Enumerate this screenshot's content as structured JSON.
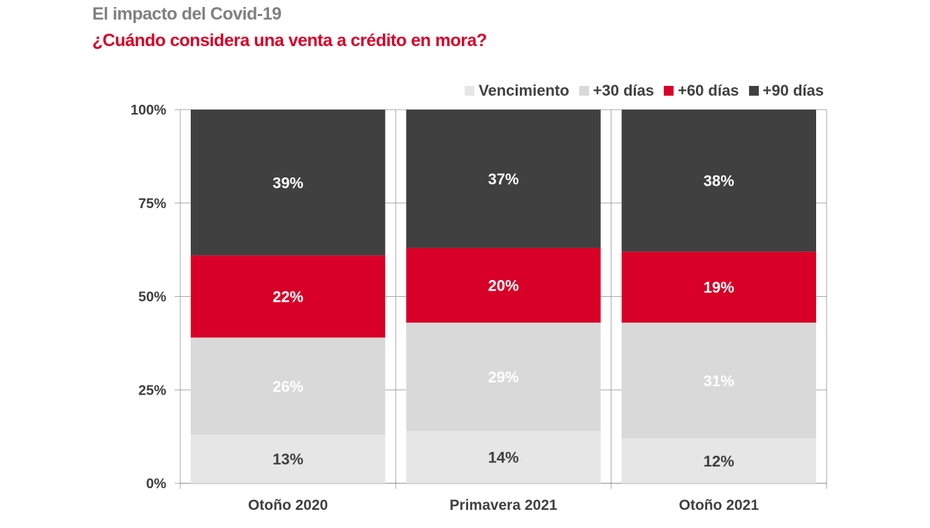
{
  "header": {
    "title": "El impacto del Covid-19",
    "subtitle": "¿Cuándo considera una venta a crédito en mora?"
  },
  "chart_data": {
    "type": "bar",
    "stacked": true,
    "categories": [
      "Otoño 2020",
      "Primavera 2021",
      "Otoño 2021"
    ],
    "series": [
      {
        "name": "Vencimiento",
        "values": [
          13,
          14,
          12
        ],
        "color": "#e6e6e6",
        "label_color": "#404040"
      },
      {
        "name": "+30 días",
        "values": [
          26,
          29,
          31
        ],
        "color": "#d9d9d9",
        "label_color": "#ffffff"
      },
      {
        "name": "+60 días",
        "values": [
          22,
          20,
          19
        ],
        "color": "#d80027",
        "label_color": "#ffffff"
      },
      {
        "name": "+90 días",
        "values": [
          39,
          37,
          38
        ],
        "color": "#404040",
        "label_color": "#ffffff"
      }
    ],
    "ylim": [
      0,
      100
    ],
    "yticks": [
      "0%",
      "25%",
      "50%",
      "75%",
      "100%"
    ],
    "grid": true,
    "legend_position": "top-right",
    "value_suffix": "%"
  }
}
